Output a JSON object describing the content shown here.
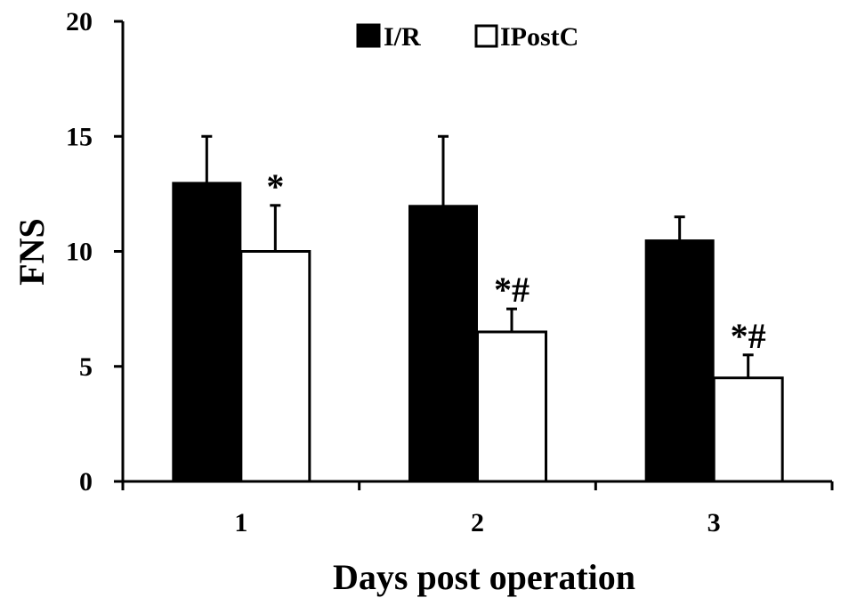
{
  "chart_data": {
    "type": "bar",
    "title": "",
    "xlabel": "Days post operation",
    "ylabel": "FNS",
    "categories": [
      "1",
      "2",
      "3"
    ],
    "ylim": [
      0,
      20
    ],
    "yticks": [
      0,
      5,
      10,
      15,
      20
    ],
    "series": [
      {
        "name": "I/R",
        "values": [
          13,
          12,
          10.5
        ],
        "error_upper": [
          2,
          3,
          1
        ],
        "color": "#000000",
        "annotations": [
          "",
          "",
          ""
        ]
      },
      {
        "name": "IPostC",
        "values": [
          10,
          6.5,
          4.5
        ],
        "error_upper": [
          2,
          1,
          1
        ],
        "color": "#ffffff",
        "annotations": [
          "*",
          "*#",
          "*#"
        ]
      }
    ],
    "legend_position": "top-center",
    "grid": false
  }
}
